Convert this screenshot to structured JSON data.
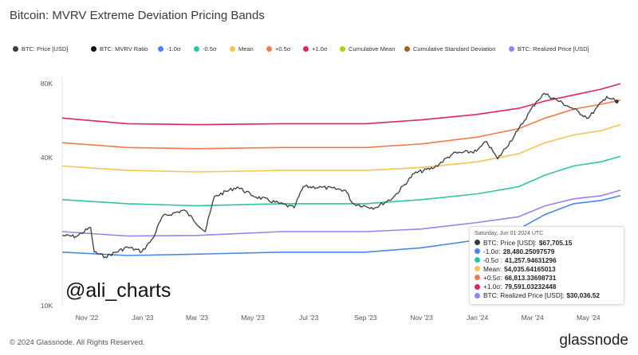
{
  "page": {
    "title": "Bitcoin: MVRV Extreme Deviation Pricing Bands",
    "footer": "© 2024 Glassnode. All Rights Reserved.",
    "brand": "glassnode",
    "watermark": "@ali_charts"
  },
  "legend": [
    {
      "label": "BTC: Price [USD]",
      "color": "#3b3b3b",
      "struck": false
    },
    {
      "label": "BTC: MVRV Ratio",
      "color": "#111111",
      "struck": true
    },
    {
      "label": "-1.0σ",
      "color": "#4a86e8",
      "struck": false
    },
    {
      "label": "-0.5σ",
      "color": "#2ec4a6",
      "struck": false
    },
    {
      "label": "Mean",
      "color": "#f6c453",
      "struck": false
    },
    {
      "label": "+0.5σ",
      "color": "#f27c4c",
      "struck": false
    },
    {
      "label": "+1.0σ",
      "color": "#e0245e",
      "struck": false
    },
    {
      "label": "Cumulative Mean",
      "color": "#a6d600",
      "struck": true
    },
    {
      "label": "Cumulative Standard Deviation",
      "color": "#a0621f",
      "struck": true
    },
    {
      "label": "BTC: Realized Price [USD]",
      "color": "#9f7ef0",
      "struck": false
    }
  ],
  "tooltip": {
    "date": "Saturday, Jun 01 2024 UTC",
    "rows": [
      {
        "label": "BTC: Price [USD]:",
        "value": "$67,705.15",
        "color": "#3b3b3b"
      },
      {
        "label": "-1.0σ:",
        "value": "28,480.25097579",
        "color": "#4a86e8"
      },
      {
        "label": "-0.5σ :",
        "value": "41,257.94631296",
        "color": "#2ec4a6"
      },
      {
        "label": "Mean:",
        "value": "54,035.64165013",
        "color": "#f6c453"
      },
      {
        "label": "+0.5σ:",
        "value": "66,813.33698731",
        "color": "#f27c4c"
      },
      {
        "label": "+1.0σ:",
        "value": "79,591.03232448",
        "color": "#e0245e"
      },
      {
        "label": "BTC: Realized Price [USD]:",
        "value": "$30,036.52",
        "color": "#9f7ef0"
      }
    ]
  },
  "chart_data": {
    "type": "line",
    "title": "Bitcoin: MVRV Extreme Deviation Pricing Bands",
    "y_scale": "log",
    "ylim": [
      10000,
      85000
    ],
    "y_ticks": [
      {
        "value": 80000,
        "label": "80K"
      },
      {
        "value": 40000,
        "label": "40K"
      },
      {
        "value": 10000,
        "label": "10K"
      }
    ],
    "xlim": [
      "2022-10-05",
      "2024-06-05"
    ],
    "x_ticks": [
      {
        "date": "2022-11-01",
        "label": "Nov '22"
      },
      {
        "date": "2023-01-01",
        "label": "Jan '23"
      },
      {
        "date": "2023-03-01",
        "label": "Mar '23"
      },
      {
        "date": "2023-05-01",
        "label": "May '23"
      },
      {
        "date": "2023-07-01",
        "label": "Jul '23"
      },
      {
        "date": "2023-09-01",
        "label": "Sep '23"
      },
      {
        "date": "2023-11-01",
        "label": "Nov '23"
      },
      {
        "date": "2024-01-01",
        "label": "Jan '24"
      },
      {
        "date": "2024-03-01",
        "label": "Mar '24"
      },
      {
        "date": "2024-05-01",
        "label": "May '24"
      }
    ],
    "grid": false,
    "series": [
      {
        "name": "+1.0σ",
        "color": "#e0245e",
        "points": [
          [
            "2022-10-05",
            58000
          ],
          [
            "2022-12-15",
            55000
          ],
          [
            "2023-03-01",
            54500
          ],
          [
            "2023-06-01",
            55000
          ],
          [
            "2023-09-01",
            55000
          ],
          [
            "2023-11-01",
            57000
          ],
          [
            "2024-01-01",
            60000
          ],
          [
            "2024-02-15",
            63500
          ],
          [
            "2024-03-15",
            68000
          ],
          [
            "2024-04-15",
            72000
          ],
          [
            "2024-05-15",
            76000
          ],
          [
            "2024-06-05",
            80000
          ]
        ]
      },
      {
        "name": "+0.5σ",
        "color": "#f27c4c",
        "points": [
          [
            "2022-10-05",
            46000
          ],
          [
            "2022-12-15",
            44000
          ],
          [
            "2023-03-01",
            43500
          ],
          [
            "2023-06-01",
            44000
          ],
          [
            "2023-09-01",
            44000
          ],
          [
            "2023-11-01",
            45500
          ],
          [
            "2024-01-01",
            48500
          ],
          [
            "2024-02-15",
            52500
          ],
          [
            "2024-03-15",
            58000
          ],
          [
            "2024-04-15",
            63000
          ],
          [
            "2024-05-15",
            66000
          ],
          [
            "2024-06-05",
            68500
          ]
        ]
      },
      {
        "name": "Mean",
        "color": "#f6c453",
        "points": [
          [
            "2022-10-05",
            37000
          ],
          [
            "2022-12-15",
            35500
          ],
          [
            "2023-03-01",
            35000
          ],
          [
            "2023-06-01",
            35500
          ],
          [
            "2023-09-01",
            35500
          ],
          [
            "2023-11-01",
            36500
          ],
          [
            "2024-01-01",
            38500
          ],
          [
            "2024-02-15",
            41500
          ],
          [
            "2024-03-15",
            46000
          ],
          [
            "2024-04-15",
            49500
          ],
          [
            "2024-05-15",
            51500
          ],
          [
            "2024-06-05",
            54500
          ]
        ]
      },
      {
        "name": "-0.5σ",
        "color": "#2ec4a6",
        "points": [
          [
            "2022-10-05",
            27000
          ],
          [
            "2022-12-15",
            26000
          ],
          [
            "2023-03-01",
            25500
          ],
          [
            "2023-06-01",
            26000
          ],
          [
            "2023-09-01",
            26000
          ],
          [
            "2023-11-01",
            27000
          ],
          [
            "2024-01-01",
            28500
          ],
          [
            "2024-02-15",
            30500
          ],
          [
            "2024-03-15",
            34000
          ],
          [
            "2024-04-15",
            37000
          ],
          [
            "2024-05-15",
            38500
          ],
          [
            "2024-06-05",
            40500
          ]
        ]
      },
      {
        "name": "BTC: Realized Price [USD]",
        "color": "#9f7ef0",
        "points": [
          [
            "2022-10-05",
            20000
          ],
          [
            "2022-12-15",
            19200
          ],
          [
            "2023-03-01",
            19300
          ],
          [
            "2023-06-01",
            20000
          ],
          [
            "2023-09-01",
            20000
          ],
          [
            "2023-11-01",
            20500
          ],
          [
            "2024-01-01",
            21800
          ],
          [
            "2024-02-15",
            23000
          ],
          [
            "2024-03-15",
            25500
          ],
          [
            "2024-04-15",
            27200
          ],
          [
            "2024-05-15",
            28000
          ],
          [
            "2024-06-05",
            29500
          ]
        ]
      },
      {
        "name": "-1.0σ",
        "color": "#4a86e8",
        "points": [
          [
            "2022-10-05",
            16500
          ],
          [
            "2022-12-15",
            16000
          ],
          [
            "2023-03-01",
            16200
          ],
          [
            "2023-06-01",
            16500
          ],
          [
            "2023-09-01",
            16500
          ],
          [
            "2023-11-01",
            17200
          ],
          [
            "2024-01-01",
            18500
          ],
          [
            "2024-02-15",
            20500
          ],
          [
            "2024-03-15",
            23500
          ],
          [
            "2024-04-15",
            26000
          ],
          [
            "2024-05-15",
            26800
          ],
          [
            "2024-06-05",
            28000
          ]
        ]
      },
      {
        "name": "BTC: Price [USD]",
        "color": "#3b3b3b",
        "points": [
          [
            "2022-10-05",
            19300
          ],
          [
            "2022-10-20",
            19100
          ],
          [
            "2022-11-05",
            20800
          ],
          [
            "2022-11-09",
            16500
          ],
          [
            "2022-11-21",
            15800
          ],
          [
            "2022-12-15",
            17300
          ],
          [
            "2022-12-31",
            16600
          ],
          [
            "2023-01-12",
            18800
          ],
          [
            "2023-01-22",
            23000
          ],
          [
            "2023-02-15",
            24500
          ],
          [
            "2023-03-10",
            20000
          ],
          [
            "2023-03-20",
            27800
          ],
          [
            "2023-04-14",
            30400
          ],
          [
            "2023-05-01",
            28000
          ],
          [
            "2023-06-15",
            25000
          ],
          [
            "2023-06-25",
            30500
          ],
          [
            "2023-07-15",
            30300
          ],
          [
            "2023-08-10",
            29500
          ],
          [
            "2023-08-18",
            26000
          ],
          [
            "2023-09-11",
            25000
          ],
          [
            "2023-10-01",
            27500
          ],
          [
            "2023-10-24",
            34500
          ],
          [
            "2023-11-15",
            36500
          ],
          [
            "2023-12-05",
            41500
          ],
          [
            "2023-12-31",
            42500
          ],
          [
            "2024-01-11",
            46500
          ],
          [
            "2024-01-23",
            39500
          ],
          [
            "2024-02-14",
            51500
          ],
          [
            "2024-03-05",
            67500
          ],
          [
            "2024-03-14",
            73000
          ],
          [
            "2024-04-15",
            63000
          ],
          [
            "2024-05-01",
            58000
          ],
          [
            "2024-05-21",
            71000
          ],
          [
            "2024-06-01",
            67705
          ]
        ]
      }
    ]
  }
}
